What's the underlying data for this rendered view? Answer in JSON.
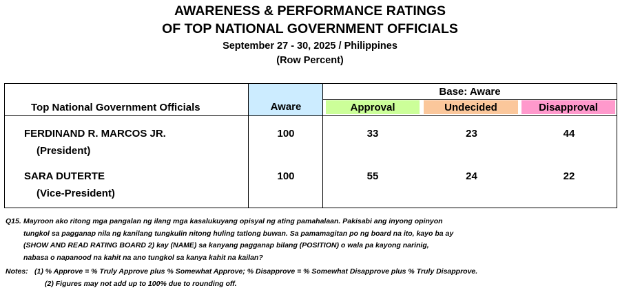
{
  "title": {
    "line1": "AWARENESS & PERFORMANCE RATINGS",
    "line2": "OF TOP NATIONAL GOVERNMENT OFFICIALS",
    "date": "September 27 - 30, 2025 / Philippines",
    "subtitle": "(Row Percent)"
  },
  "table": {
    "col_officials": "Top National Government Officials",
    "col_aware": "Aware",
    "base_label": "Base: Aware",
    "col_approval": "Approval",
    "col_undecided": "Undecided",
    "col_disapproval": "Disapproval",
    "colors": {
      "aware": "#ccecff",
      "approval": "#ccff99",
      "undecided": "#fbc79b",
      "disapproval": "#ff99cc"
    },
    "rows": [
      {
        "name": "FERDINAND R. MARCOS JR.",
        "position": "(President)",
        "aware": "100",
        "approval": "33",
        "undecided": "23",
        "disapproval": "44"
      },
      {
        "name": "SARA DUTERTE",
        "position": "(Vice-President)",
        "aware": "100",
        "approval": "55",
        "undecided": "24",
        "disapproval": "22"
      }
    ]
  },
  "question": {
    "tag": "Q15.",
    "lines": [
      "Mayroon ako ritong mga pangalan ng ilang mga kasalukuyang opisyal ng ating pamahalaan. Pakisabi ang inyong opinyon",
      "tungkol sa pagganap nila ng kanilang tungkulin nitong huling tatlong buwan. Sa pamamagitan po ng board na ito, kayo ba ay",
      "(SHOW AND READ RATING BOARD 2) kay (NAME) sa kanyang pagganap bilang (POSITION) o wala pa kayong narinig,",
      "nabasa o napanood na kahit na ano tungkol sa kanya kahit na kailan?"
    ]
  },
  "notes": {
    "tag": "Notes:",
    "items": [
      "(1) % Approve = % Truly Approve plus % Somewhat Approve; % Disapprove = % Somewhat Disapprove plus % Truly Disapprove.",
      "(2) Figures may not add up to 100% due to rounding off."
    ]
  }
}
